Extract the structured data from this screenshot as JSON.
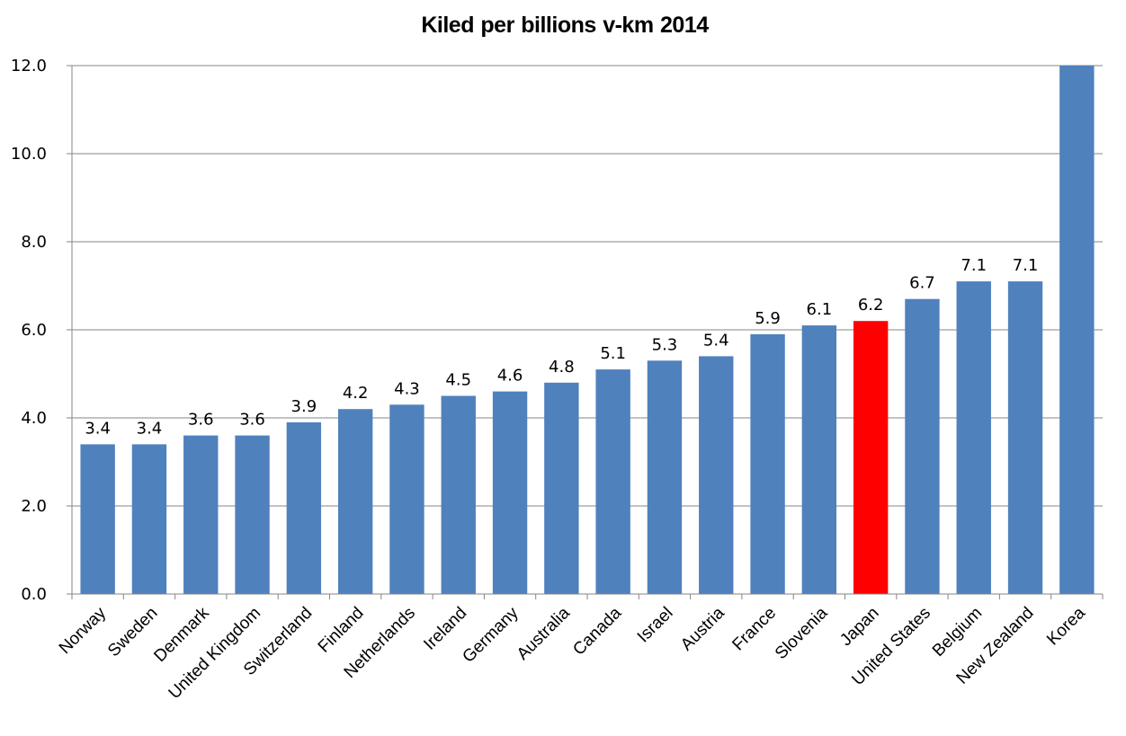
{
  "chart_data": {
    "type": "bar",
    "title": "Kiled per billions v-km   2014",
    "xlabel": "",
    "ylabel": "",
    "ylim": [
      0,
      12
    ],
    "yticks": [
      "0.0",
      "2.0",
      "4.0",
      "6.0",
      "8.0",
      "10.0",
      "12.0"
    ],
    "ytick_values": [
      0,
      2,
      4,
      6,
      8,
      10,
      12
    ],
    "grid": true,
    "legend": "none",
    "categories": [
      "Norway",
      "Sweden",
      "Denmark",
      "United Kingdom",
      "Switzerland",
      "Finland",
      "Netherlands",
      "Ireland",
      "Germany",
      "Australia",
      "Canada",
      "Israel",
      "Austria",
      "France",
      "Slovenia",
      "Japan",
      "United States",
      "Belgium",
      "New Zealand",
      "Korea"
    ],
    "values": [
      3.4,
      3.4,
      3.6,
      3.6,
      3.9,
      4.2,
      4.3,
      4.5,
      4.6,
      4.8,
      5.1,
      5.3,
      5.4,
      5.9,
      6.1,
      6.2,
      6.7,
      7.1,
      7.1,
      12.0
    ],
    "data_labels": [
      "3.4",
      "3.4",
      "3.6",
      "3.6",
      "3.9",
      "4.2",
      "4.3",
      "4.5",
      "4.6",
      "4.8",
      "5.1",
      "5.3",
      "5.4",
      "5.9",
      "6.1",
      "6.2",
      "6.7",
      "7.1",
      "7.1",
      ""
    ],
    "notes": "Korea bar exceeds the axis maximum (clipped at 12.0) and has no data label",
    "highlight": "Japan",
    "colors": {
      "bar": "#4f81bd",
      "highlight": "#ff0000",
      "grid": "#868686",
      "axis": "#868686"
    }
  }
}
